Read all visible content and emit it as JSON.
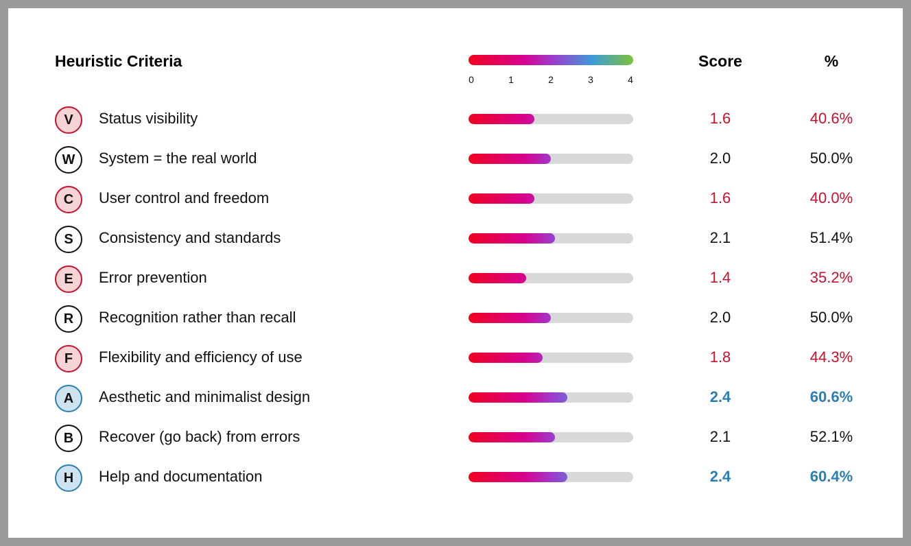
{
  "header": {
    "title": "Heuristic Criteria",
    "score_label": "Score",
    "percent_label": "%"
  },
  "legend": {
    "ticks": [
      "0",
      "1",
      "2",
      "3",
      "4"
    ],
    "min": 0,
    "max": 4
  },
  "colors": {
    "low": "#c8102e",
    "high": "#2b7fb0",
    "neutral": "#111111",
    "track": "#d9d9d9"
  },
  "rows": [
    {
      "letter": "V",
      "label": "Status visibility",
      "score": 1.6,
      "score_text": "1.6",
      "percent": "40.6%",
      "level": "low"
    },
    {
      "letter": "W",
      "label": "System = the real world",
      "score": 2.0,
      "score_text": "2.0",
      "percent": "50.0%",
      "level": "neutral"
    },
    {
      "letter": "C",
      "label": "User control and freedom",
      "score": 1.6,
      "score_text": "1.6",
      "percent": "40.0%",
      "level": "low"
    },
    {
      "letter": "S",
      "label": "Consistency and standards",
      "score": 2.1,
      "score_text": "2.1",
      "percent": "51.4%",
      "level": "neutral"
    },
    {
      "letter": "E",
      "label": "Error prevention",
      "score": 1.4,
      "score_text": "1.4",
      "percent": "35.2%",
      "level": "low"
    },
    {
      "letter": "R",
      "label": "Recognition rather than recall",
      "score": 2.0,
      "score_text": "2.0",
      "percent": "50.0%",
      "level": "neutral"
    },
    {
      "letter": "F",
      "label": "Flexibility and efficiency of use",
      "score": 1.8,
      "score_text": "1.8",
      "percent": "44.3%",
      "level": "low"
    },
    {
      "letter": "A",
      "label": "Aesthetic and minimalist design",
      "score": 2.4,
      "score_text": "2.4",
      "percent": "60.6%",
      "level": "high"
    },
    {
      "letter": "B",
      "label": "Recover (go back) from errors",
      "score": 2.1,
      "score_text": "2.1",
      "percent": "52.1%",
      "level": "neutral"
    },
    {
      "letter": "H",
      "label": "Help and documentation",
      "score": 2.4,
      "score_text": "2.4",
      "percent": "60.4%",
      "level": "high"
    }
  ],
  "chart_data": {
    "type": "bar",
    "title": "Heuristic Criteria",
    "categories": [
      "Status visibility",
      "System = the real world",
      "User control and freedom",
      "Consistency and standards",
      "Error prevention",
      "Recognition rather than recall",
      "Flexibility and efficiency of use",
      "Aesthetic and minimalist design",
      "Recover (go back) from errors",
      "Help and documentation"
    ],
    "series": [
      {
        "name": "Score",
        "values": [
          1.6,
          2.0,
          1.6,
          2.1,
          1.4,
          2.0,
          1.8,
          2.4,
          2.1,
          2.4
        ]
      },
      {
        "name": "%",
        "values": [
          40.6,
          50.0,
          40.0,
          51.4,
          35.2,
          50.0,
          44.3,
          60.6,
          52.1,
          60.4
        ]
      }
    ],
    "xlim": [
      0,
      4
    ],
    "orientation": "horizontal",
    "legend": "top",
    "grid": false
  }
}
